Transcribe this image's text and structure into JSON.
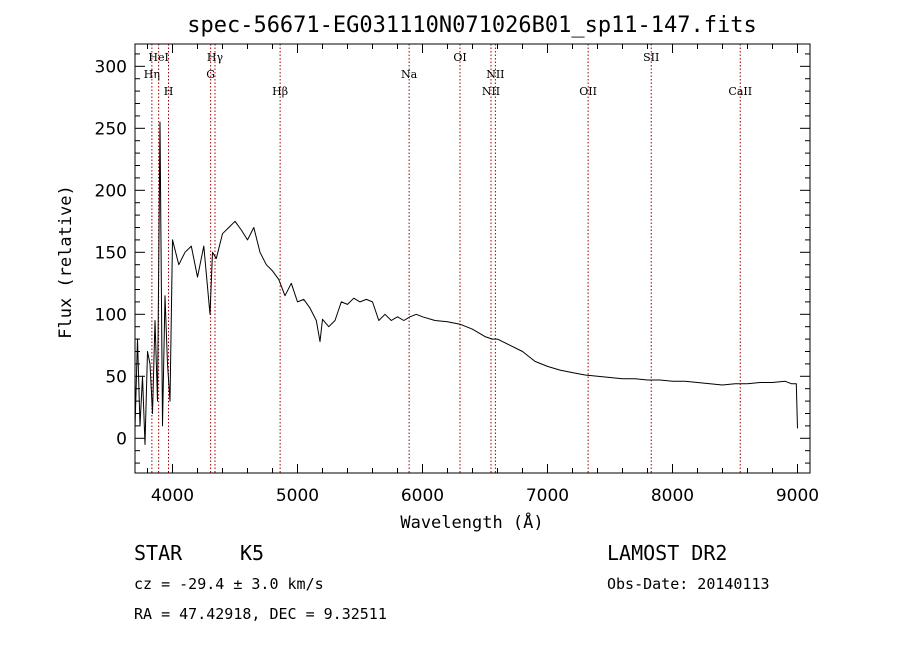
{
  "title": "spec-56671-EG031110N071026B01_sp11-147.fits",
  "info": {
    "class": "STAR",
    "subclass": "K5",
    "survey": "LAMOST DR2",
    "cz": "cz = -29.4 ± 3.0 km/s",
    "obs_date": "Obs-Date: 20140113",
    "coords": "RA =  47.42918, DEC =   9.32511"
  },
  "chart_data": {
    "type": "line",
    "xlabel": "Wavelength (Å)",
    "ylabel": "Flux (relative)",
    "xlim": [
      3700,
      9100
    ],
    "ylim": [
      -28,
      318
    ],
    "xticks": [
      4000,
      5000,
      6000,
      7000,
      8000,
      9000
    ],
    "yticks": [
      0,
      50,
      100,
      150,
      200,
      250,
      300
    ],
    "line_color": "#000000",
    "marker_color": "#a00000",
    "lines": [
      {
        "name": "Hη",
        "x": 3835,
        "row": 1
      },
      {
        "name": "HeI",
        "x": 3889,
        "row": 0
      },
      {
        "name": "H",
        "x": 3968,
        "row": 2
      },
      {
        "name": "Hγ",
        "x": 4340,
        "row": 0
      },
      {
        "name": "G",
        "x": 4305,
        "row": 1
      },
      {
        "name": "Hβ",
        "x": 4861,
        "row": 2
      },
      {
        "name": "Na",
        "x": 5893,
        "row": 1
      },
      {
        "name": "OI",
        "x": 6300,
        "row": 0
      },
      {
        "name": "NII",
        "x": 6583,
        "row": 1
      },
      {
        "name": "NII",
        "x": 6548,
        "row": 2
      },
      {
        "name": "OII",
        "x": 7325,
        "row": 2
      },
      {
        "name": "SII",
        "x": 7830,
        "row": 0
      },
      {
        "name": "CaII",
        "x": 8542,
        "row": 2
      }
    ],
    "series": [
      {
        "x": [
          3700,
          3720,
          3740,
          3760,
          3780,
          3800,
          3820,
          3840,
          3860,
          3880,
          3900,
          3920,
          3940,
          3960,
          3980,
          4000,
          4050,
          4100,
          4150,
          4200,
          4250,
          4300,
          4320,
          4350,
          4400,
          4450,
          4500,
          4550,
          4600,
          4650,
          4700,
          4750,
          4800,
          4850,
          4900,
          4950,
          5000,
          5050,
          5100,
          5150,
          5180,
          5200,
          5250,
          5300,
          5350,
          5400,
          5450,
          5500,
          5550,
          5600,
          5650,
          5700,
          5750,
          5800,
          5850,
          5900,
          5950,
          6000,
          6100,
          6200,
          6300,
          6400,
          6500,
          6560,
          6600,
          6700,
          6800,
          6900,
          7000,
          7100,
          7200,
          7300,
          7400,
          7500,
          7600,
          7700,
          7800,
          7900,
          8000,
          8100,
          8200,
          8300,
          8400,
          8500,
          8600,
          8700,
          8800,
          8900,
          8950,
          8990,
          9000
        ],
        "y": [
          8,
          80,
          10,
          50,
          -5,
          70,
          60,
          20,
          95,
          30,
          255,
          10,
          115,
          60,
          30,
          160,
          140,
          150,
          155,
          130,
          155,
          100,
          150,
          145,
          165,
          170,
          175,
          168,
          160,
          170,
          150,
          140,
          135,
          128,
          115,
          125,
          110,
          112,
          105,
          95,
          78,
          96,
          90,
          95,
          110,
          108,
          113,
          110,
          112,
          110,
          95,
          100,
          95,
          98,
          95,
          98,
          100,
          98,
          95,
          94,
          92,
          88,
          82,
          80,
          80,
          75,
          70,
          62,
          58,
          55,
          53,
          51,
          50,
          49,
          48,
          48,
          47,
          47,
          46,
          46,
          45,
          44,
          43,
          44,
          44,
          45,
          45,
          46,
          44,
          44,
          8
        ]
      }
    ]
  }
}
